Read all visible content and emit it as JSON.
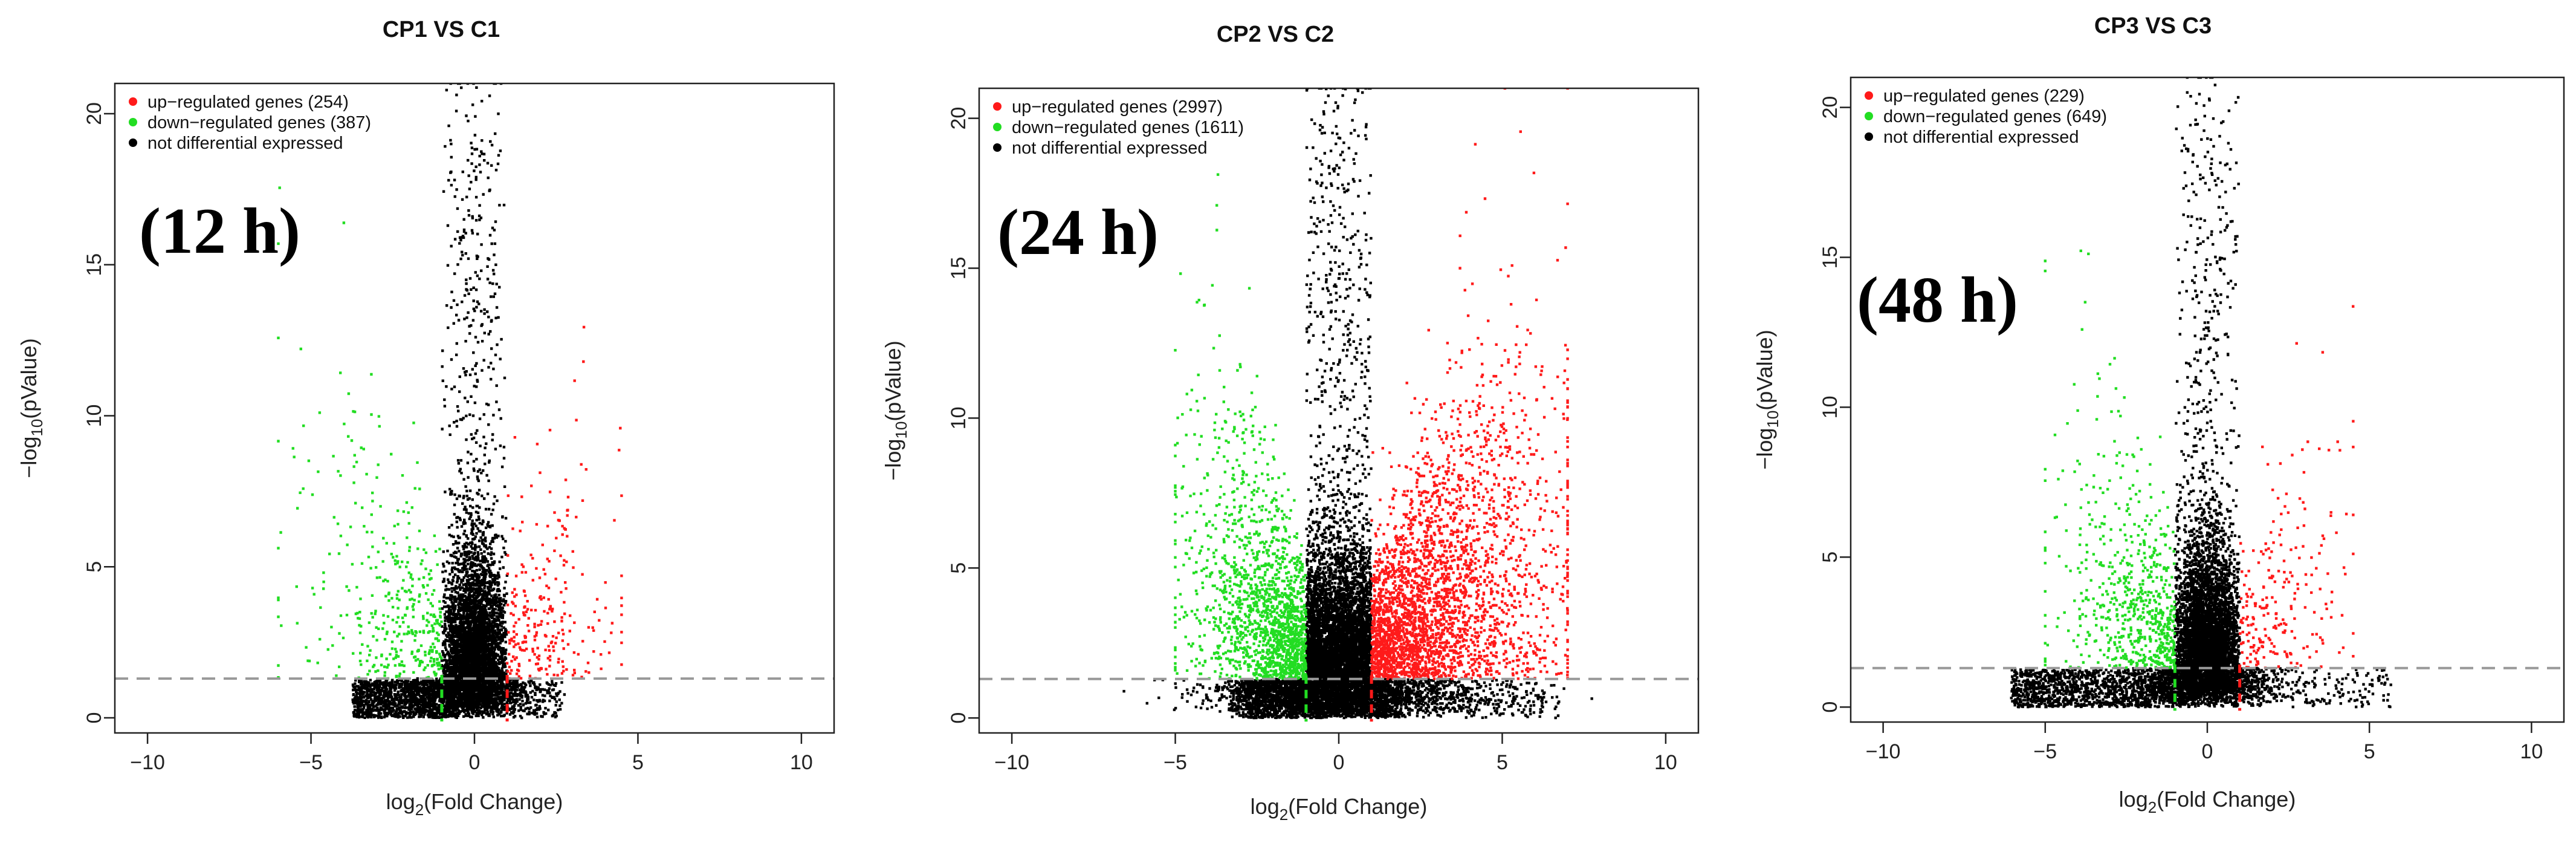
{
  "colors": {
    "up": "#ff1a1a",
    "down": "#22dd22",
    "ns": "#000000",
    "threshold": "#999999"
  },
  "chart_data": [
    {
      "type": "scatter",
      "title": "CP1 VS C1",
      "time_point": "(12 h)",
      "xlabel": {
        "prefix": "log",
        "sub": "2",
        "suffix": "(Fold Change)"
      },
      "ylabel": {
        "prefix": "−log",
        "sub": "10",
        "suffix": "(pValue)"
      },
      "xlim": [
        -11,
        11
      ],
      "ylim": [
        -0.5,
        21
      ],
      "xticks": [
        "−10",
        "−5",
        "0",
        "5",
        "10"
      ],
      "xtick_values": [
        -10,
        -5,
        0,
        5,
        10
      ],
      "yticks": [
        "0",
        "5",
        "10",
        "15",
        "20"
      ],
      "ytick_values": [
        0,
        5,
        10,
        15,
        20
      ],
      "pvalue_threshold": 1.3,
      "fold_change_thresholds": [
        -1,
        1
      ],
      "legend_position": "top-left",
      "legend": [
        {
          "label": "up−regulated genes",
          "count": "(254)",
          "series": "up"
        },
        {
          "label": "down−regulated genes",
          "count": "(387)",
          "series": "down"
        },
        {
          "label": "not differential expressed",
          "count": "",
          "series": "ns"
        }
      ],
      "series": [
        {
          "name": "up",
          "count": 254
        },
        {
          "name": "down",
          "count": 387
        },
        {
          "name": "ns",
          "count": 5000
        }
      ],
      "profile": {
        "spread": 0.55,
        "xmin": -6,
        "xmax": 4.5,
        "ymax": 21,
        "down_xmin": -6,
        "up_xmax": 4.5,
        "seed": 11
      }
    },
    {
      "type": "scatter",
      "title": "CP2 VS C2",
      "time_point": "(24 h)",
      "xlabel": {
        "prefix": "log",
        "sub": "2",
        "suffix": "(Fold Change)"
      },
      "ylabel": {
        "prefix": "−log",
        "sub": "10",
        "suffix": "(pValue)"
      },
      "xlim": [
        -11,
        11
      ],
      "ylim": [
        -0.5,
        21
      ],
      "xticks": [
        "−10",
        "−5",
        "0",
        "5",
        "10"
      ],
      "xtick_values": [
        -10,
        -5,
        0,
        5,
        10
      ],
      "yticks": [
        "0",
        "5",
        "10",
        "15",
        "20"
      ],
      "ytick_values": [
        0,
        5,
        10,
        15,
        20
      ],
      "pvalue_threshold": 1.3,
      "fold_change_thresholds": [
        -1,
        1
      ],
      "legend_position": "top-left",
      "legend": [
        {
          "label": "up−regulated genes",
          "count": "(2997)",
          "series": "up"
        },
        {
          "label": "down−regulated genes",
          "count": "(1611)",
          "series": "down"
        },
        {
          "label": "not differential expressed",
          "count": "",
          "series": "ns"
        }
      ],
      "series": [
        {
          "name": "up",
          "count": 2997
        },
        {
          "name": "down",
          "count": 1611
        },
        {
          "name": "ns",
          "count": 7000
        }
      ],
      "profile": {
        "spread": 1.3,
        "xmin": -5.5,
        "xmax": 10.5,
        "ymax": 21,
        "down_xmin": -5,
        "up_xmax": 7,
        "seed": 23
      }
    },
    {
      "type": "scatter",
      "title": "CP3 VS C3",
      "time_point": "(48 h)",
      "xlabel": {
        "prefix": "log",
        "sub": "2",
        "suffix": "(Fold Change)"
      },
      "ylabel": {
        "prefix": "−log",
        "sub": "10",
        "suffix": "(pValue)"
      },
      "xlim": [
        -11,
        11
      ],
      "ylim": [
        -0.5,
        21
      ],
      "xticks": [
        "−10",
        "−5",
        "0",
        "5",
        "10"
      ],
      "xtick_values": [
        -10,
        -5,
        0,
        5,
        10
      ],
      "yticks": [
        "0",
        "5",
        "10",
        "15",
        "20"
      ],
      "ytick_values": [
        0,
        5,
        10,
        15,
        20
      ],
      "pvalue_threshold": 1.3,
      "fold_change_thresholds": [
        -1,
        1
      ],
      "legend_position": "top-left",
      "legend": [
        {
          "label": "up−regulated genes",
          "count": "(229)",
          "series": "up"
        },
        {
          "label": "down−regulated genes",
          "count": "(649)",
          "series": "down"
        },
        {
          "label": "not differential expressed",
          "count": "",
          "series": "ns"
        }
      ],
      "series": [
        {
          "name": "up",
          "count": 229
        },
        {
          "name": "down",
          "count": 649
        },
        {
          "name": "ns",
          "count": 5500
        }
      ],
      "profile": {
        "spread": 0.6,
        "xmin": -10,
        "xmax": 9.5,
        "ymax": 21,
        "down_xmin": -5,
        "up_xmax": 4.5,
        "seed": 37
      }
    }
  ]
}
